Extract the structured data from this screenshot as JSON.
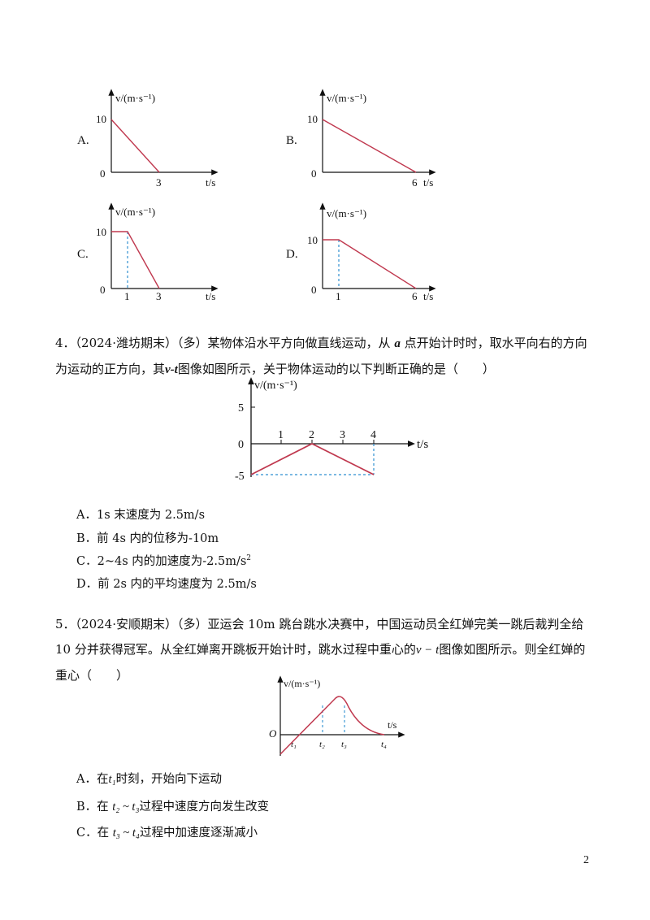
{
  "top_options": [
    {
      "label": "A.",
      "v_unit": "v/(m·s⁻¹)",
      "v0": "10",
      "origin": "0",
      "t_ticks": [
        "3"
      ],
      "t_unit": "t/s"
    },
    {
      "label": "B.",
      "v_unit": "v/(m·s⁻¹)",
      "v0": "10",
      "origin": "0",
      "t_ticks": [
        "6"
      ],
      "t_unit": "t/s"
    },
    {
      "label": "C.",
      "v_unit": "v/(m·s⁻¹)",
      "v0": "10",
      "origin": "0",
      "t_ticks": [
        "1",
        "3"
      ],
      "t_unit": "t/s"
    },
    {
      "label": "D.",
      "v_unit": "v/(m·s⁻¹)",
      "v0": "10",
      "origin": "0",
      "t_ticks": [
        "1",
        "6"
      ],
      "t_unit": "t/s"
    }
  ],
  "q4": {
    "number": "4．",
    "source": "（2024·潍坊期末）",
    "tag": "（多）",
    "text_a": "某物体沿水平方向做直线运动，从",
    "point": "a",
    "text_b": "点开始计时时，取水平向右的方向为运动的正方向，其",
    "vt": "v-t",
    "text_c": "图像如图所示，关于物体运动的以下判断正确的是（　　）",
    "graph": {
      "y_label": "v/(m·s⁻¹)",
      "x_label": "t/s",
      "y_ticks": [
        "5",
        "0",
        "-5"
      ],
      "x_ticks": [
        "1",
        "2",
        "3",
        "4"
      ]
    },
    "choices": [
      {
        "letter": "A．",
        "text": "1s 末速度为 2.5m/s"
      },
      {
        "letter": "B．",
        "text": "前 4s 内的位移为-10m"
      },
      {
        "letter": "C．",
        "text": "2~4s 内的加速度为-2.5m/s",
        "sup": "2"
      },
      {
        "letter": "D．",
        "text": "前 2s 内的平均速度为 2.5m/s"
      }
    ]
  },
  "q5": {
    "number": "5．",
    "source": "（2024·安顺期末）",
    "tag": "（多）",
    "text_a": "亚运会 10m 跳台跳水决赛中，中国运动员全红婵完美一跳后裁判全给 10 分并获得冠军。从全红婵离开跳板开始计时，跳水过程中重心的",
    "vt": "v − t",
    "text_b": "图像如图所示。则全红婵的重心（　　）",
    "graph": {
      "y_label": "v/(m·s⁻¹)",
      "x_label": "t/s",
      "origin": "O",
      "x_ticks": [
        "t₁",
        "t₂",
        "t₃",
        "t₄"
      ]
    },
    "choices": [
      {
        "letter": "A．",
        "pre": "在",
        "var": "t₁",
        "post": "时刻，开始向下运动"
      },
      {
        "letter": "B．",
        "pre": "在",
        "var": "t₂ ~ t₃",
        "post": "过程中速度方向发生改变"
      },
      {
        "letter": "C．",
        "pre": "在",
        "var": "t₃ ~ t₄",
        "post": "过程中加速度逐渐减小"
      }
    ]
  },
  "page_number": "2",
  "colors": {
    "curve": "#c0394f",
    "dash": "#2f8fd0",
    "axis": "#111111"
  }
}
